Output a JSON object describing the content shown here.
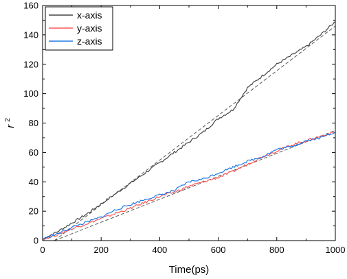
{
  "chart_data": {
    "type": "line",
    "xlabel": "Time(ps)",
    "ylabel": "r",
    "ylabel_superscript": "2",
    "xlim": [
      0,
      1000
    ],
    "ylim": [
      0,
      160
    ],
    "x_ticks": [
      0,
      200,
      400,
      600,
      800,
      1000
    ],
    "y_ticks": [
      0,
      20,
      40,
      60,
      80,
      100,
      120,
      140,
      160
    ],
    "grid": false,
    "legend_position": "top-left",
    "x": [
      0,
      50,
      100,
      150,
      200,
      250,
      300,
      350,
      400,
      450,
      500,
      550,
      600,
      650,
      700,
      750,
      800,
      850,
      900,
      950,
      1000
    ],
    "series": [
      {
        "name": "x-axis",
        "color": "#444444",
        "values": [
          1,
          6,
          12,
          18,
          25,
          32,
          39,
          46,
          53,
          60,
          67,
          74,
          83,
          89,
          104,
          112,
          120,
          126,
          132,
          140,
          149
        ]
      },
      {
        "name": "y-axis",
        "color": "#ff5555",
        "values": [
          1,
          4,
          8,
          11.5,
          15,
          18.5,
          22,
          26,
          30,
          33,
          37,
          40,
          43,
          47,
          52,
          57,
          61,
          65,
          68,
          71,
          74
        ]
      },
      {
        "name": "z-axis",
        "color": "#1e78e6",
        "values": [
          1,
          4.5,
          9,
          12.5,
          16,
          21,
          24.5,
          28,
          31,
          34,
          40,
          42,
          46,
          50,
          54,
          57,
          62,
          64,
          68,
          70,
          74
        ]
      }
    ],
    "fit_lines": [
      {
        "x": [
          40,
          1000
        ],
        "y": [
          0,
          146
        ]
      },
      {
        "x": [
          40,
          1000
        ],
        "y": [
          0,
          75
        ]
      }
    ]
  }
}
